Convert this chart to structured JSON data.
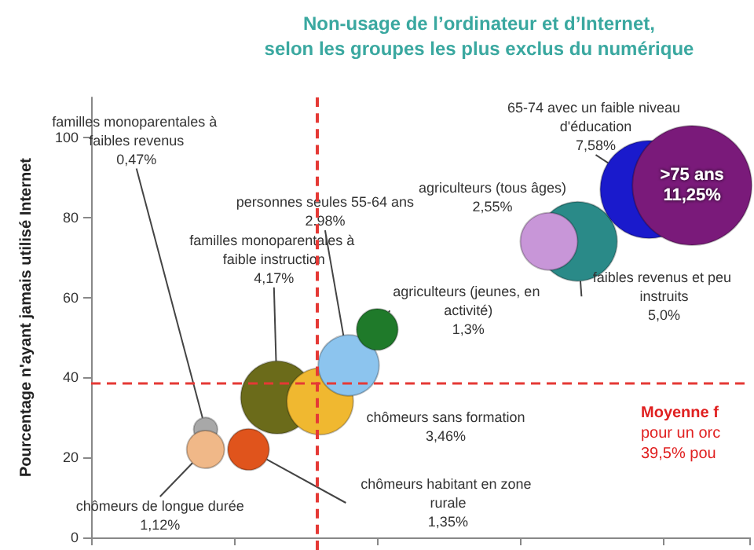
{
  "chart_data": {
    "type": "bubble",
    "title": "Non-usage de l’ordinateur et d’Internet,\nselon les groupes les plus exclus du numérique",
    "ylabel": "Pourcentage n'ayant jamais utilisé Internet",
    "categories": [
      null,
      null,
      null,
      null,
      null,
      null,
      null,
      null,
      null,
      null,
      null,
      null,
      null,
      null,
      null,
      null,
      null,
      null,
      null,
      null,
      null,
      null,
      null,
      null,
      null,
      null,
      null,
      null,
      null,
      null,
      null,
      null,
      null,
      null,
      null,
      null,
      null,
      null,
      null,
      null,
      null,
      null,
      null,
      null,
      null,
      null,
      null
    ],
    "ylim": [
      0,
      110
    ],
    "yticks": [
      0,
      20,
      40,
      60,
      80,
      100
    ],
    "legend": false,
    "series": [
      {
        "name": "familles monoparentales à faibles revenus 0,47%",
        "color": "#a8a8a8",
        "values": [
          null,
          null,
          null,
          null,
          null,
          null,
          null,
          null,
          27,
          null,
          null,
          null,
          null,
          null,
          null,
          null,
          null,
          null,
          null,
          null,
          null,
          null,
          null,
          null,
          null,
          null,
          null,
          null,
          null,
          null,
          null,
          null,
          null,
          null,
          null,
          null,
          null,
          null,
          null,
          null,
          null,
          null,
          null,
          null,
          null,
          null,
          null
        ],
        "sizes": [
          null,
          null,
          null,
          null,
          null,
          null,
          null,
          null,
          0.04,
          null,
          null,
          null,
          null,
          null,
          null,
          null,
          null,
          null,
          null,
          null,
          null,
          null,
          null,
          null,
          null,
          null,
          null,
          null,
          null,
          null,
          null,
          null,
          null,
          null,
          null,
          null,
          null,
          null,
          null,
          null,
          null,
          null,
          null,
          null,
          null,
          null,
          null
        ]
      },
      {
        "name": "chômeurs de longue durée 1,12%",
        "color": "#f0b888",
        "values": [
          null,
          null,
          null,
          null,
          null,
          null,
          null,
          null,
          22,
          null,
          null,
          null,
          null,
          null,
          null,
          null,
          null,
          null,
          null,
          null,
          null,
          null,
          null,
          null,
          null,
          null,
          null,
          null,
          null,
          null,
          null,
          null,
          null,
          null,
          null,
          null,
          null,
          null,
          null,
          null,
          null,
          null,
          null,
          null,
          null,
          null,
          null
        ],
        "sizes": [
          null,
          null,
          null,
          null,
          null,
          null,
          null,
          null,
          0.1,
          null,
          null,
          null,
          null,
          null,
          null,
          null,
          null,
          null,
          null,
          null,
          null,
          null,
          null,
          null,
          null,
          null,
          null,
          null,
          null,
          null,
          null,
          null,
          null,
          null,
          null,
          null,
          null,
          null,
          null,
          null,
          null,
          null,
          null,
          null,
          null,
          null,
          null
        ]
      },
      {
        "name": "chômeurs habitant en zone rurale 1,35%",
        "color": "#e0541c",
        "values": [
          null,
          null,
          null,
          null,
          null,
          null,
          null,
          null,
          null,
          null,
          null,
          22,
          null,
          null,
          null,
          null,
          null,
          null,
          null,
          null,
          null,
          null,
          null,
          null,
          null,
          null,
          null,
          null,
          null,
          null,
          null,
          null,
          null,
          null,
          null,
          null,
          null,
          null,
          null,
          null,
          null,
          null,
          null,
          null,
          null,
          null,
          null
        ],
        "sizes": [
          null,
          null,
          null,
          null,
          null,
          null,
          null,
          null,
          null,
          null,
          null,
          0.12,
          null,
          null,
          null,
          null,
          null,
          null,
          null,
          null,
          null,
          null,
          null,
          null,
          null,
          null,
          null,
          null,
          null,
          null,
          null,
          null,
          null,
          null,
          null,
          null,
          null,
          null,
          null,
          null,
          null,
          null,
          null,
          null,
          null,
          null,
          null
        ]
      },
      {
        "name": "familles monoparentales à faible instruction 4,17%",
        "color": "#6b6b1a",
        "values": [
          null,
          null,
          null,
          null,
          null,
          null,
          null,
          null,
          null,
          null,
          null,
          null,
          null,
          35,
          null,
          null,
          null,
          null,
          null,
          null,
          null,
          null,
          null,
          null,
          null,
          null,
          null,
          null,
          null,
          null,
          null,
          null,
          null,
          null,
          null,
          null,
          null,
          null,
          null,
          null,
          null,
          null,
          null,
          null,
          null,
          null,
          null
        ],
        "sizes": [
          null,
          null,
          null,
          null,
          null,
          null,
          null,
          null,
          null,
          null,
          null,
          null,
          null,
          0.37,
          null,
          null,
          null,
          null,
          null,
          null,
          null,
          null,
          null,
          null,
          null,
          null,
          null,
          null,
          null,
          null,
          null,
          null,
          null,
          null,
          null,
          null,
          null,
          null,
          null,
          null,
          null,
          null,
          null,
          null,
          null,
          null,
          null
        ]
      },
      {
        "name": "chômeurs sans formation 3,46%",
        "color": "#f0b830",
        "values": [
          null,
          null,
          null,
          null,
          null,
          null,
          null,
          null,
          null,
          null,
          null,
          null,
          null,
          null,
          null,
          null,
          34,
          null,
          null,
          null,
          null,
          null,
          null,
          null,
          null,
          null,
          null,
          null,
          null,
          null,
          null,
          null,
          null,
          null,
          null,
          null,
          null,
          null,
          null,
          null,
          null,
          null,
          null,
          null,
          null,
          null,
          null
        ],
        "sizes": [
          null,
          null,
          null,
          null,
          null,
          null,
          null,
          null,
          null,
          null,
          null,
          null,
          null,
          null,
          null,
          null,
          0.31,
          null,
          null,
          null,
          null,
          null,
          null,
          null,
          null,
          null,
          null,
          null,
          null,
          null,
          null,
          null,
          null,
          null,
          null,
          null,
          null,
          null,
          null,
          null,
          null,
          null,
          null,
          null,
          null,
          null,
          null
        ]
      },
      {
        "name": "personnes seules 55-64 ans 2.98%",
        "color": "#8cc4ee",
        "values": [
          null,
          null,
          null,
          null,
          null,
          null,
          null,
          null,
          null,
          null,
          null,
          null,
          null,
          null,
          null,
          null,
          null,
          null,
          43,
          null,
          null,
          null,
          null,
          null,
          null,
          null,
          null,
          null,
          null,
          null,
          null,
          null,
          null,
          null,
          null,
          null,
          null,
          null,
          null,
          null,
          null,
          null,
          null,
          null,
          null,
          null,
          null
        ],
        "sizes": [
          null,
          null,
          null,
          null,
          null,
          null,
          null,
          null,
          null,
          null,
          null,
          null,
          null,
          null,
          null,
          null,
          null,
          null,
          0.26,
          null,
          null,
          null,
          null,
          null,
          null,
          null,
          null,
          null,
          null,
          null,
          null,
          null,
          null,
          null,
          null,
          null,
          null,
          null,
          null,
          null,
          null,
          null,
          null,
          null,
          null,
          null,
          null
        ]
      },
      {
        "name": "agriculteurs (jeunes, en activité) 1,3%",
        "color": "#1f7a2a",
        "values": [
          null,
          null,
          null,
          null,
          null,
          null,
          null,
          null,
          null,
          null,
          null,
          null,
          null,
          null,
          null,
          null,
          null,
          null,
          null,
          null,
          52,
          null,
          null,
          null,
          null,
          null,
          null,
          null,
          null,
          null,
          null,
          null,
          null,
          null,
          null,
          null,
          null,
          null,
          null,
          null,
          null,
          null,
          null,
          null,
          null,
          null,
          null
        ],
        "sizes": [
          null,
          null,
          null,
          null,
          null,
          null,
          null,
          null,
          null,
          null,
          null,
          null,
          null,
          null,
          null,
          null,
          null,
          null,
          null,
          null,
          0.12,
          null,
          null,
          null,
          null,
          null,
          null,
          null,
          null,
          null,
          null,
          null,
          null,
          null,
          null,
          null,
          null,
          null,
          null,
          null,
          null,
          null,
          null,
          null,
          null,
          null,
          null
        ]
      },
      {
        "name": "agriculteurs (tous âges) 2,55%",
        "color": "#c896d8",
        "values": [
          null,
          null,
          null,
          null,
          null,
          null,
          null,
          null,
          null,
          null,
          null,
          null,
          null,
          null,
          null,
          null,
          null,
          null,
          null,
          null,
          null,
          null,
          null,
          null,
          null,
          null,
          null,
          null,
          null,
          null,
          null,
          null,
          74,
          null,
          null,
          null,
          null,
          null,
          null,
          null,
          null,
          null,
          null,
          null,
          null,
          null,
          null
        ],
        "sizes": [
          null,
          null,
          null,
          null,
          null,
          null,
          null,
          null,
          null,
          null,
          null,
          null,
          null,
          null,
          null,
          null,
          null,
          null,
          null,
          null,
          null,
          null,
          null,
          null,
          null,
          null,
          null,
          null,
          null,
          null,
          null,
          null,
          0.23,
          null,
          null,
          null,
          null,
          null,
          null,
          null,
          null,
          null,
          null,
          null,
          null,
          null,
          null
        ]
      },
      {
        "name": "faibles revenus et peu instruits 5,0%",
        "color": "#2a8a88",
        "values": [
          null,
          null,
          null,
          null,
          null,
          null,
          null,
          null,
          null,
          null,
          null,
          null,
          null,
          null,
          null,
          null,
          null,
          null,
          null,
          null,
          null,
          null,
          null,
          null,
          null,
          null,
          null,
          null,
          null,
          null,
          null,
          null,
          null,
          null,
          74,
          null,
          null,
          null,
          null,
          null,
          null,
          null,
          null,
          null,
          null,
          null,
          null
        ],
        "sizes": [
          null,
          null,
          null,
          null,
          null,
          null,
          null,
          null,
          null,
          null,
          null,
          null,
          null,
          null,
          null,
          null,
          null,
          null,
          null,
          null,
          null,
          null,
          null,
          null,
          null,
          null,
          null,
          null,
          null,
          null,
          null,
          null,
          null,
          null,
          0.44,
          null,
          null,
          null,
          null,
          null,
          null,
          null,
          null,
          null,
          null,
          null,
          null
        ]
      },
      {
        "name": "65-74 avec un faible niveau d'éducation 7,58%",
        "color": "#1a1acc",
        "values": [
          null,
          null,
          null,
          null,
          null,
          null,
          null,
          null,
          null,
          null,
          null,
          null,
          null,
          null,
          null,
          null,
          null,
          null,
          null,
          null,
          null,
          null,
          null,
          null,
          null,
          null,
          null,
          null,
          null,
          null,
          null,
          null,
          null,
          null,
          null,
          null,
          null,
          null,
          null,
          87,
          null,
          null,
          null,
          null,
          null,
          null,
          null
        ],
        "sizes": [
          null,
          null,
          null,
          null,
          null,
          null,
          null,
          null,
          null,
          null,
          null,
          null,
          null,
          null,
          null,
          null,
          null,
          null,
          null,
          null,
          null,
          null,
          null,
          null,
          null,
          null,
          null,
          null,
          null,
          null,
          null,
          null,
          null,
          null,
          null,
          null,
          null,
          null,
          null,
          0.67,
          null,
          null,
          null,
          null,
          null,
          null,
          null
        ]
      },
      {
        "name": ">75 ans 11,25%",
        "color": "#7a1a7a",
        "values": [
          null,
          null,
          null,
          null,
          null,
          null,
          null,
          null,
          null,
          null,
          null,
          null,
          null,
          null,
          null,
          null,
          null,
          null,
          null,
          null,
          null,
          null,
          null,
          null,
          null,
          null,
          null,
          null,
          null,
          null,
          null,
          null,
          null,
          null,
          null,
          null,
          null,
          null,
          null,
          null,
          null,
          null,
          88,
          null,
          null,
          null,
          null
        ],
        "sizes": [
          null,
          null,
          null,
          null,
          null,
          null,
          null,
          null,
          null,
          null,
          null,
          null,
          null,
          null,
          null,
          null,
          null,
          null,
          null,
          null,
          null,
          null,
          null,
          null,
          null,
          null,
          null,
          null,
          null,
          null,
          null,
          null,
          null,
          null,
          null,
          null,
          null,
          null,
          null,
          null,
          null,
          null,
          1,
          null,
          null,
          null,
          null
        ]
      }
    ],
    "ref_lines": [
      {
        "axis": "y",
        "value": 38.5,
        "color": "#e53935",
        "line_style": "dashed"
      }
    ],
    "annotations": [
      "Moyenne f",
      "pour un orc",
      "39,5% pou"
    ]
  }
}
